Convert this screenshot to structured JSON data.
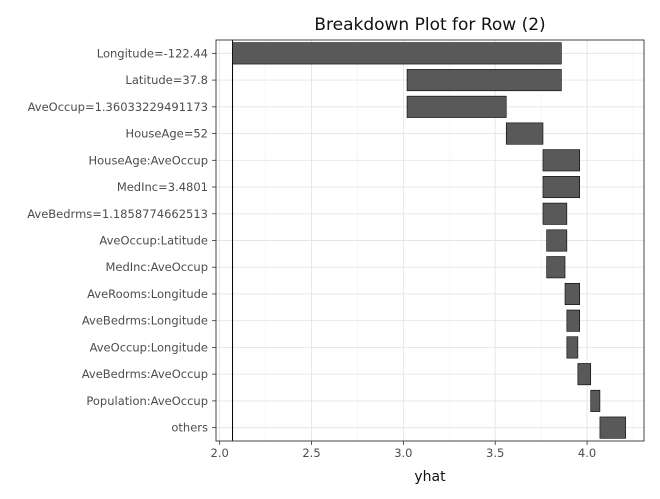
{
  "chart_data": {
    "type": "bar",
    "subtype": "waterfall-breakdown",
    "title": "Breakdown Plot for Row (2)",
    "xlabel": "yhat",
    "ylabel": "",
    "xlim": [
      1.98,
      4.31
    ],
    "xticks": [
      2.0,
      2.5,
      3.0,
      3.5,
      4.0
    ],
    "xtick_labels": [
      "2.0",
      "2.5",
      "3.0",
      "3.5",
      "4.0"
    ],
    "baseline": 2.07,
    "grid": true,
    "bar_color": "#595959",
    "categories": [
      "Longitude=-122.44",
      "Latitude=37.8",
      "AveOccup=1.36033229491173",
      "HouseAge=52",
      "HouseAge:AveOccup",
      "MedInc=3.4801",
      "AveBedrms=1.1858774662513",
      "AveOccup:Latitude",
      "MedInc:AveOccup",
      "AveRooms:Longitude",
      "AveBedrms:Longitude",
      "AveOccup:Longitude",
      "AveBedrms:AveOccup",
      "Population:AveOccup",
      "others"
    ],
    "bars": [
      {
        "start": 2.07,
        "end": 3.86
      },
      {
        "start": 3.86,
        "end": 3.02
      },
      {
        "start": 3.02,
        "end": 3.56
      },
      {
        "start": 3.56,
        "end": 3.76
      },
      {
        "start": 3.76,
        "end": 3.96
      },
      {
        "start": 3.96,
        "end": 3.76
      },
      {
        "start": 3.76,
        "end": 3.89
      },
      {
        "start": 3.89,
        "end": 3.78
      },
      {
        "start": 3.78,
        "end": 3.88
      },
      {
        "start": 3.88,
        "end": 3.96
      },
      {
        "start": 3.96,
        "end": 3.89
      },
      {
        "start": 3.89,
        "end": 3.95
      },
      {
        "start": 3.95,
        "end": 4.02
      },
      {
        "start": 4.02,
        "end": 4.07
      },
      {
        "start": 4.07,
        "end": 4.21
      }
    ]
  }
}
